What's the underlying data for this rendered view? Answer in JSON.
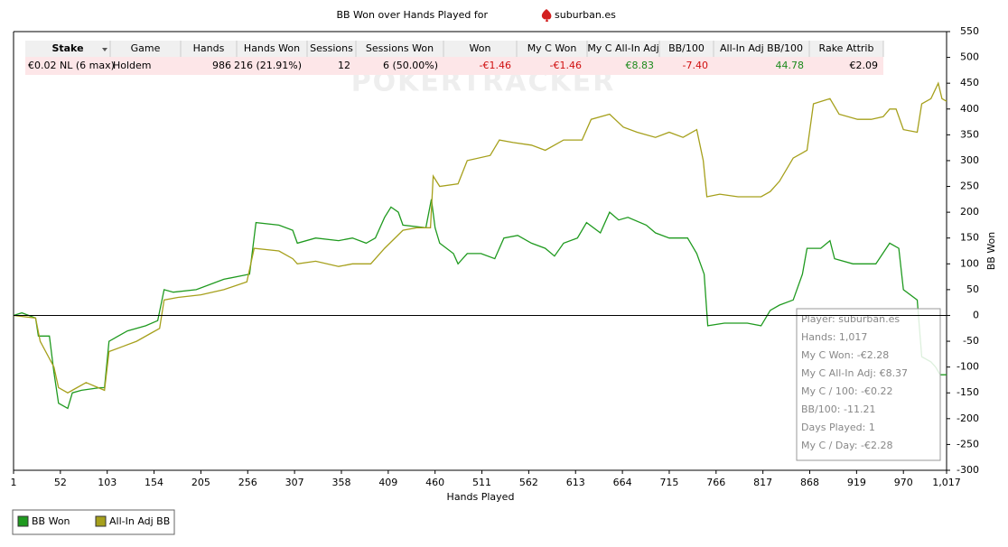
{
  "chart_data": {
    "type": "line",
    "title": "BB Won over Hands Played for",
    "player": "suburban.es",
    "watermark": "POKERTRACKER",
    "x_label": "Hands Played",
    "y_label": "BB Won",
    "xlim": [
      1,
      1017
    ],
    "ylim": [
      -300,
      550
    ],
    "xticks": [
      1,
      52,
      103,
      154,
      205,
      256,
      307,
      358,
      409,
      460,
      511,
      562,
      613,
      664,
      715,
      766,
      817,
      868,
      919,
      970,
      {
        "value": 1017,
        "label": "1,017"
      }
    ],
    "yticks": [
      -300,
      -250,
      -200,
      -150,
      -100,
      -50,
      0,
      50,
      100,
      150,
      200,
      250,
      300,
      350,
      400,
      450,
      500,
      550
    ],
    "series": [
      {
        "name": "BB Won",
        "color": "#1f9a1f",
        "x": [
          1,
          10,
          25,
          28,
          40,
          45,
          50,
          60,
          65,
          75,
          95,
          100,
          105,
          115,
          125,
          145,
          158,
          165,
          175,
          200,
          230,
          258,
          265,
          290,
          305,
          310,
          330,
          355,
          370,
          385,
          395,
          405,
          412,
          420,
          425,
          450,
          456,
          460,
          465,
          480,
          485,
          495,
          510,
          525,
          535,
          550,
          565,
          580,
          590,
          600,
          615,
          625,
          640,
          650,
          660,
          670,
          690,
          700,
          715,
          735,
          745,
          753,
          757,
          775,
          800,
          815,
          825,
          835,
          850,
          860,
          865,
          880,
          890,
          895,
          915,
          940,
          955,
          965,
          970,
          985,
          990,
          1000,
          1005,
          1010,
          1017
        ],
        "values": [
          0,
          5,
          -5,
          -40,
          -40,
          -110,
          -170,
          -180,
          -150,
          -145,
          -140,
          -140,
          -50,
          -40,
          -30,
          -20,
          -10,
          50,
          45,
          50,
          70,
          80,
          180,
          175,
          165,
          140,
          150,
          145,
          150,
          140,
          150,
          190,
          210,
          200,
          175,
          170,
          225,
          170,
          140,
          120,
          100,
          120,
          120,
          110,
          150,
          155,
          140,
          130,
          115,
          140,
          150,
          180,
          160,
          200,
          185,
          190,
          175,
          160,
          150,
          150,
          120,
          80,
          -20,
          -15,
          -15,
          -20,
          10,
          20,
          30,
          80,
          130,
          130,
          145,
          110,
          100,
          100,
          140,
          130,
          50,
          30,
          -80,
          -90,
          -100,
          -115,
          -115
        ]
      },
      {
        "name": "All-In Adj BB",
        "color": "#a6a01c",
        "x": [
          1,
          25,
          30,
          45,
          50,
          60,
          70,
          80,
          100,
          105,
          120,
          135,
          150,
          160,
          165,
          180,
          205,
          230,
          255,
          263,
          290,
          305,
          310,
          330,
          355,
          370,
          390,
          405,
          425,
          440,
          455,
          458,
          465,
          485,
          495,
          520,
          530,
          545,
          565,
          580,
          600,
          620,
          630,
          650,
          665,
          680,
          700,
          715,
          730,
          745,
          752,
          756,
          770,
          790,
          815,
          825,
          835,
          850,
          865,
          872,
          890,
          900,
          920,
          935,
          948,
          955,
          962,
          970,
          985,
          990,
          1000,
          1008,
          1012,
          1017
        ],
        "values": [
          0,
          -5,
          -50,
          -100,
          -140,
          -150,
          -140,
          -130,
          -145,
          -70,
          -60,
          -50,
          -35,
          -25,
          30,
          35,
          40,
          50,
          65,
          130,
          125,
          110,
          100,
          105,
          95,
          100,
          100,
          130,
          165,
          170,
          170,
          270,
          250,
          255,
          300,
          310,
          340,
          335,
          330,
          320,
          340,
          340,
          380,
          390,
          365,
          355,
          345,
          355,
          345,
          360,
          300,
          230,
          235,
          230,
          230,
          240,
          260,
          305,
          320,
          410,
          420,
          390,
          380,
          380,
          385,
          400,
          400,
          360,
          355,
          410,
          420,
          450,
          420,
          415
        ]
      }
    ],
    "legend": "bottom-left"
  },
  "table": {
    "columns": [
      "Stake",
      "Game",
      "Hands",
      "Hands Won",
      "Sessions",
      "Sessions Won",
      "Won",
      "My C Won",
      "My C All-In Adj",
      "BB/100",
      "All-In Adj BB/100",
      "Rake Attrib"
    ],
    "rows": [
      [
        "€0.02 NL (6 max)",
        "Holdem",
        "986",
        "216 (21.91%)",
        "12",
        "6 (50.00%)",
        "-€1.46",
        "-€1.46",
        "€8.83",
        "-7.40",
        "44.78",
        "€2.09"
      ]
    ]
  },
  "tooltip": [
    "Player: suburban.es",
    "Hands: 1,017",
    "My C Won: -€2.28",
    "My C All-In Adj: €8.37",
    "My C / 100: -€0.22",
    "BB/100: -11.21",
    "Days Played: 1",
    "My C / Day: -€2.28"
  ]
}
